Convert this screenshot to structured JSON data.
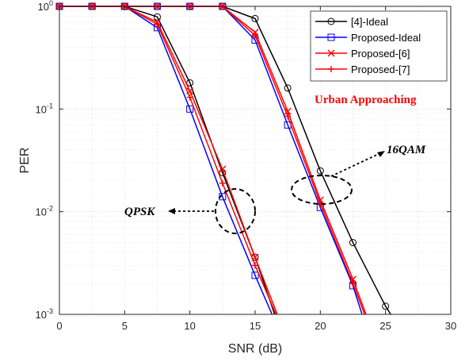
{
  "chart_data": {
    "type": "line",
    "xlabel": "SNR (dB)",
    "ylabel": "PER",
    "xlim": [
      0,
      30
    ],
    "ylim": [
      0.001,
      1
    ],
    "yscale": "log",
    "grid": true,
    "legend_position": "top-right",
    "x_ticks": [
      "0",
      "5",
      "10",
      "15",
      "20",
      "25",
      "30"
    ],
    "y_ticks": [
      {
        "value": 1,
        "base": "10",
        "exp": "0"
      },
      {
        "value": 0.1,
        "base": "10",
        "exp": "-1"
      },
      {
        "value": 0.01,
        "base": "10",
        "exp": "-2"
      },
      {
        "value": 0.001,
        "base": "10",
        "exp": "-3"
      }
    ],
    "series": [
      {
        "name": "[4]-Ideal",
        "color": "#000000",
        "marker": "circle",
        "group": "QPSK",
        "x": [
          0,
          2.5,
          5,
          7.5,
          10,
          12.5,
          15,
          16.5
        ],
        "y": [
          1,
          1,
          1,
          0.79,
          0.18,
          0.024,
          0.0036,
          0.001
        ]
      },
      {
        "name": "Proposed-Ideal",
        "color": "#0000ff",
        "marker": "square",
        "group": "QPSK",
        "x": [
          0,
          2.5,
          5,
          7.5,
          10,
          12.5,
          15,
          16.3
        ],
        "y": [
          1,
          1,
          1,
          0.62,
          0.1,
          0.014,
          0.0024,
          0.001
        ]
      },
      {
        "name": "Proposed-[6]",
        "color": "#ff0000",
        "marker": "x",
        "group": "QPSK",
        "x": [
          0,
          2.5,
          5,
          7.5,
          10,
          12.5,
          15,
          16.7
        ],
        "y": [
          1,
          1,
          1,
          0.7,
          0.15,
          0.026,
          0.0036,
          0.001
        ]
      },
      {
        "name": "Proposed-[7]",
        "color": "#ff0000",
        "marker": "plus",
        "group": "QPSK",
        "x": [
          0,
          2.5,
          5,
          7.5,
          10,
          12.5,
          15,
          16.6
        ],
        "y": [
          1,
          1,
          1,
          0.67,
          0.13,
          0.019,
          0.003,
          0.001
        ]
      },
      {
        "name": "[4]-Ideal",
        "color": "#000000",
        "marker": "circle",
        "group": "16QAM",
        "x": [
          0,
          2.5,
          5,
          7.5,
          10,
          12.5,
          15,
          17.5,
          20,
          22.5,
          25,
          25.4
        ],
        "y": [
          1,
          1,
          1,
          1,
          1,
          1,
          0.76,
          0.16,
          0.025,
          0.005,
          0.0012,
          0.001
        ]
      },
      {
        "name": "Proposed-Ideal",
        "color": "#0000ff",
        "marker": "square",
        "group": "16QAM",
        "x": [
          0,
          2.5,
          5,
          7.5,
          10,
          12.5,
          15,
          17.5,
          20,
          22.5,
          23.2
        ],
        "y": [
          1,
          1,
          1,
          1,
          1,
          1,
          0.47,
          0.07,
          0.011,
          0.0019,
          0.001
        ]
      },
      {
        "name": "Proposed-[6]",
        "color": "#ff0000",
        "marker": "x",
        "group": "16QAM",
        "x": [
          0,
          2.5,
          5,
          7.5,
          10,
          12.5,
          15,
          17.5,
          20,
          22.5,
          23.5
        ],
        "y": [
          1,
          1,
          1,
          1,
          1,
          1,
          0.56,
          0.095,
          0.013,
          0.0022,
          0.001
        ]
      },
      {
        "name": "Proposed-[7]",
        "color": "#ff0000",
        "marker": "plus",
        "group": "16QAM",
        "x": [
          0,
          2.5,
          5,
          7.5,
          10,
          12.5,
          15,
          17.5,
          20,
          22.5,
          23.4
        ],
        "y": [
          1,
          1,
          1,
          1,
          1,
          1,
          0.52,
          0.085,
          0.012,
          0.002,
          0.001
        ]
      }
    ],
    "legend": [
      "[4]-Ideal",
      "Proposed-Ideal",
      "Proposed-[6]",
      "Proposed-[7]"
    ],
    "annotations": {
      "scenario": "Urban Approaching",
      "qpsk": "QPSK",
      "qam": "16QAM"
    }
  }
}
